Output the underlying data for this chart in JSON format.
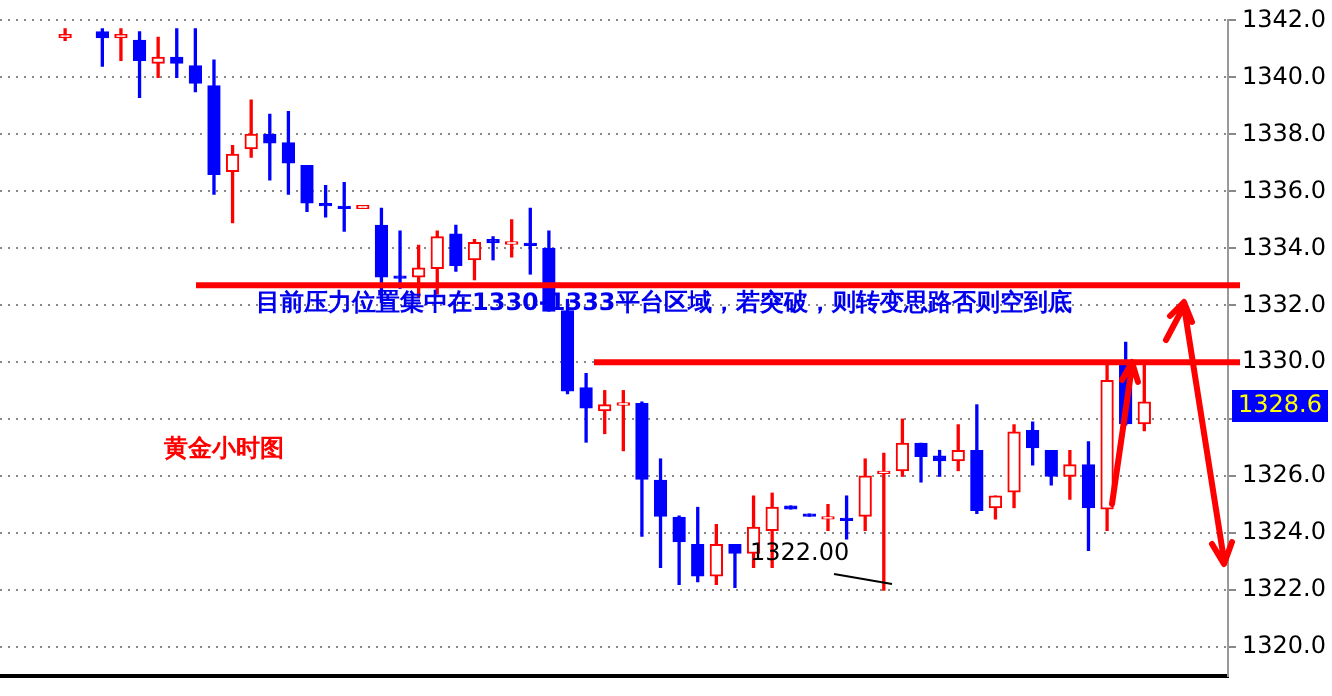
{
  "chart_data": {
    "type": "candlestick",
    "title": "黄金小时图",
    "categories": [
      null,
      null,
      null,
      null,
      null,
      null,
      null,
      null,
      null,
      null,
      null,
      null,
      null,
      null,
      null,
      null,
      null,
      null,
      null,
      null,
      null,
      null,
      null,
      null,
      null,
      null,
      null,
      null,
      null,
      null,
      null,
      null,
      null,
      null,
      null,
      null,
      null,
      null,
      null,
      null,
      null,
      null,
      null,
      null,
      null,
      null,
      null,
      null,
      null,
      null,
      null,
      null,
      null,
      null,
      null,
      null,
      null,
      null,
      null,
      null,
      null,
      null,
      null,
      null,
      null,
      null
    ],
    "ohlc": [
      null,
      null,
      null,
      [
        1341.4,
        1341.7,
        1341.3,
        1341.5
      ],
      null,
      [
        1341.6,
        1341.7,
        1340.4,
        1341.4
      ],
      [
        1341.4,
        1341.7,
        1340.6,
        1341.5
      ],
      [
        1341.3,
        1341.6,
        1339.3,
        1340.6
      ],
      [
        1340.5,
        1341.4,
        1340.0,
        1340.7
      ],
      [
        1340.7,
        1341.7,
        1340.0,
        1340.5
      ],
      [
        1340.4,
        1341.7,
        1339.5,
        1339.8
      ],
      [
        1339.7,
        1340.6,
        1335.9,
        1336.6
      ],
      [
        1336.7,
        1337.6,
        1334.9,
        1337.3
      ],
      [
        1337.5,
        1339.2,
        1337.2,
        1338.0
      ],
      [
        1338.0,
        1338.7,
        1336.4,
        1337.7
      ],
      [
        1337.7,
        1338.8,
        1335.9,
        1337.0
      ],
      [
        1336.9,
        1336.9,
        1335.3,
        1335.6
      ],
      [
        1335.55,
        1336.2,
        1335.1,
        1335.5
      ],
      [
        1335.45,
        1336.3,
        1334.6,
        1335.4
      ],
      [
        1335.4,
        1335.5,
        1335.4,
        1335.5
      ],
      [
        1334.8,
        1335.4,
        1332.1,
        1333.0
      ],
      [
        1333.0,
        1334.6,
        1332.6,
        1332.95
      ],
      [
        1333.0,
        1334.1,
        1332.3,
        1333.3
      ],
      [
        1333.3,
        1334.6,
        1332.4,
        1334.4
      ],
      [
        1334.5,
        1334.8,
        1333.2,
        1333.4
      ],
      [
        1333.6,
        1334.3,
        1332.9,
        1334.2
      ],
      [
        1334.3,
        1334.4,
        1333.6,
        1334.2
      ],
      [
        1334.15,
        1335.0,
        1333.7,
        1334.2
      ],
      [
        1334.15,
        1335.4,
        1333.1,
        1334.1
      ],
      [
        1334.0,
        1334.6,
        1331.8,
        1331.8
      ],
      [
        1331.8,
        1332.2,
        1328.9,
        1329.0
      ],
      [
        1329.1,
        1329.6,
        1327.2,
        1328.4
      ],
      [
        1328.3,
        1329.0,
        1327.5,
        1328.5
      ],
      [
        1328.5,
        1329.0,
        1326.9,
        1328.55
      ],
      [
        1328.55,
        1328.6,
        1323.9,
        1325.9
      ],
      [
        1325.85,
        1326.6,
        1322.8,
        1324.6
      ],
      [
        1324.55,
        1324.6,
        1322.2,
        1323.7
      ],
      [
        1323.6,
        1324.9,
        1322.3,
        1322.5
      ],
      [
        1322.5,
        1324.3,
        1322.2,
        1323.6
      ],
      [
        1323.6,
        1323.6,
        1322.1,
        1323.3
      ],
      [
        1323.3,
        1325.3,
        1322.8,
        1324.2
      ],
      [
        1324.1,
        1325.4,
        1322.8,
        1324.9
      ],
      [
        1324.95,
        1324.95,
        1324.85,
        1324.85
      ],
      [
        1324.65,
        1324.65,
        1324.6,
        1324.6
      ],
      [
        1324.5,
        1325.0,
        1324.1,
        1324.55
      ],
      [
        1324.5,
        1325.3,
        1323.8,
        1324.45
      ],
      [
        1324.6,
        1326.6,
        1324.1,
        1326.0
      ],
      [
        1326.1,
        1326.8,
        1322.0,
        1326.15
      ],
      [
        1326.2,
        1328.0,
        1326.0,
        1327.15
      ],
      [
        1327.15,
        1327.15,
        1325.8,
        1326.7
      ],
      [
        1326.7,
        1326.9,
        1326.0,
        1326.55
      ],
      [
        1326.55,
        1327.8,
        1326.2,
        1326.9
      ],
      [
        1326.9,
        1328.5,
        1324.7,
        1324.8
      ],
      [
        1324.9,
        1325.3,
        1324.5,
        1325.3
      ],
      [
        1325.45,
        1327.8,
        1324.9,
        1327.55
      ],
      [
        1327.6,
        1327.9,
        1326.4,
        1327.0
      ],
      [
        1326.9,
        1326.9,
        1325.7,
        1326.0
      ],
      [
        1326.0,
        1326.9,
        1325.2,
        1326.4
      ],
      [
        1326.4,
        1327.2,
        1323.4,
        1324.9
      ],
      [
        1324.85,
        1329.9,
        1324.1,
        1329.35
      ],
      [
        1329.9,
        1330.7,
        1327.8,
        1327.85
      ],
      [
        1327.85,
        1330.05,
        1327.6,
        1328.6
      ],
      null,
      null,
      null,
      null
    ],
    "colors": [
      null,
      null,
      null,
      "#ff0000",
      null,
      "#0000ff",
      "#ff0000",
      "#0000ff",
      "#ff0000",
      "#0000ff",
      "#0000ff",
      "#0000ff",
      "#ff0000",
      "#ff0000",
      "#0000ff",
      "#0000ff",
      "#0000ff",
      "#0000ff",
      "#0000ff",
      "#ff0000",
      "#0000ff",
      "#0000ff",
      "#ff0000",
      "#ff0000",
      "#0000ff",
      "#ff0000",
      "#0000ff",
      "#ff0000",
      "#0000ff",
      "#0000ff",
      "#0000ff",
      "#0000ff",
      "#ff0000",
      "#ff0000",
      "#0000ff",
      "#0000ff",
      "#0000ff",
      "#0000ff",
      "#ff0000",
      "#0000ff",
      "#ff0000",
      "#ff0000",
      "#0000ff",
      "#0000ff",
      "#ff0000",
      "#0000ff",
      "#ff0000",
      "#ff0000",
      "#ff0000",
      "#0000ff",
      "#0000ff",
      "#ff0000",
      "#0000ff",
      "#ff0000",
      "#ff0000",
      "#0000ff",
      "#0000ff",
      "#ff0000",
      "#0000ff",
      "#ff0000",
      "#0000ff",
      "#ff0000",
      null,
      null,
      null,
      null
    ],
    "ylim": [
      1319,
      1342
    ],
    "yticks": [
      {
        "value": 1320,
        "label": "1320.0"
      },
      {
        "value": 1322,
        "label": "1322.0"
      },
      {
        "value": 1324,
        "label": "1324.0"
      },
      {
        "value": 1326,
        "label": "1326.0"
      },
      {
        "value": 1328,
        "label": null
      },
      {
        "value": 1330,
        "label": "1330.0"
      },
      {
        "value": 1332,
        "label": "1332.0"
      },
      {
        "value": 1334,
        "label": "1334.0"
      },
      {
        "value": 1336,
        "label": "1336.0"
      },
      {
        "value": 1338,
        "label": "1338.0"
      },
      {
        "value": 1340,
        "label": "1340.0"
      },
      {
        "value": 1342,
        "label": "1342.0"
      }
    ],
    "grid": "y",
    "tick_labels": "y",
    "legend": false,
    "ref_lines": [
      {
        "axis": "y",
        "value": 1332.7,
        "color": "#ff0000"
      },
      {
        "axis": "y",
        "value": 1330.0,
        "color": "#ff0000"
      }
    ],
    "annotations": [
      "目前压力位置集中在1330-1333平台区域，若突破，则转变思路否则空到底",
      "1322.00",
      "1328.6"
    ]
  }
}
